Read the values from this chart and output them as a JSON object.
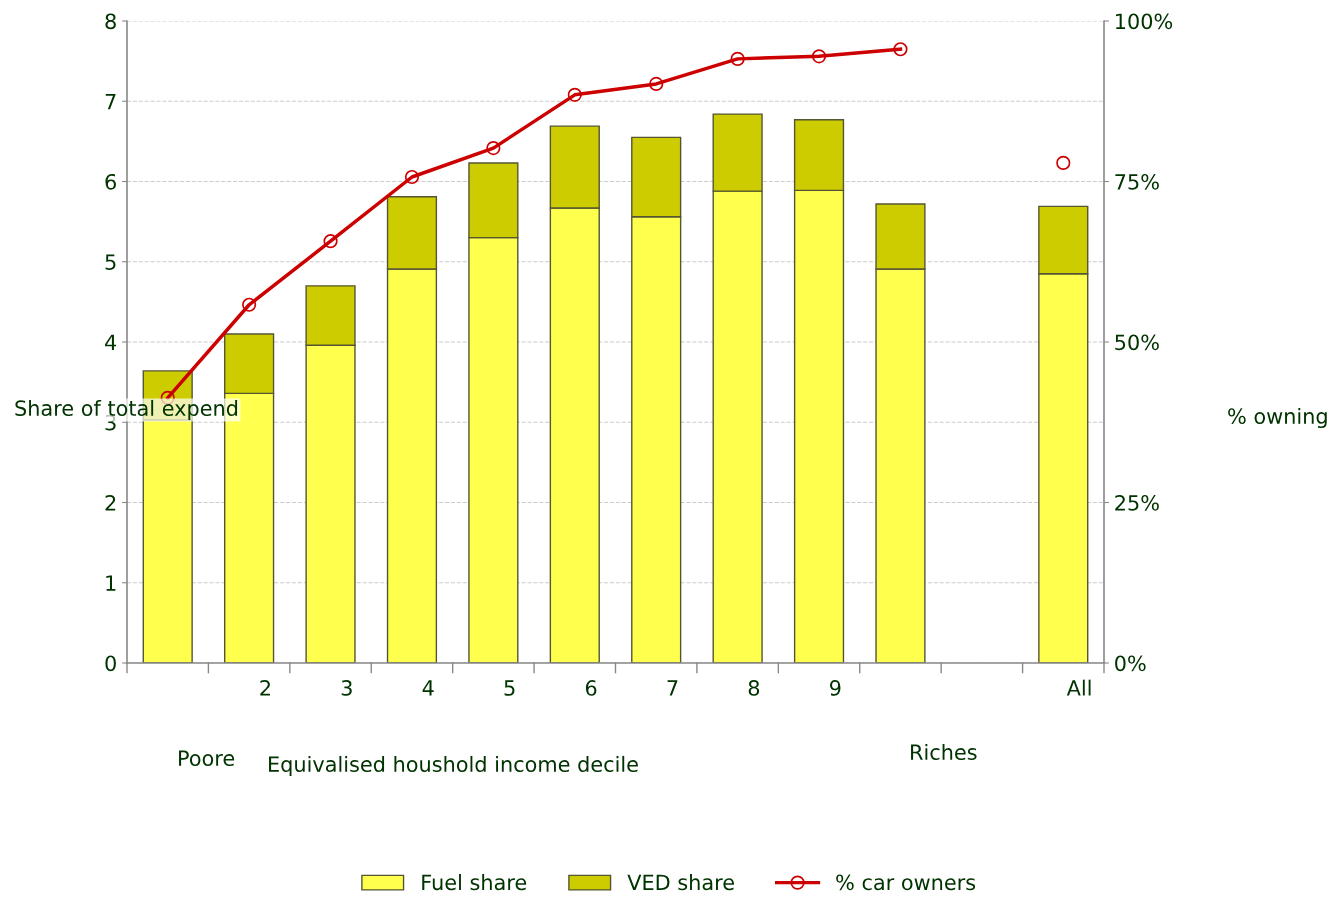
{
  "chart_data": {
    "type": "bar",
    "stacked": true,
    "xlabel": "Equivalised houshold income decile",
    "ylabel": "Share of total expend",
    "y2label": "% owning",
    "categories": [
      null,
      "2",
      "3",
      "4",
      "5",
      "6",
      "7",
      "8",
      "9",
      null,
      null,
      "All"
    ],
    "series": [
      {
        "name": "Fuel share",
        "color": "#ffff4d",
        "values": [
          3.03,
          3.36,
          3.96,
          4.91,
          5.3,
          5.67,
          5.56,
          5.88,
          5.89,
          4.91,
          null,
          4.85
        ]
      },
      {
        "name": "VED share",
        "color": "#cccc00",
        "values": [
          0.61,
          0.74,
          0.74,
          0.9,
          0.93,
          1.02,
          0.99,
          0.96,
          0.88,
          0.81,
          null,
          0.84
        ]
      },
      {
        "name": "% car owners",
        "type": "line",
        "axis": "y2",
        "color": "#cc0000",
        "marker": "circle",
        "line_style": "solid",
        "values": [
          41.3,
          55.8,
          65.7,
          75.7,
          80.2,
          88.5,
          90.2,
          94.1,
          94.5,
          95.6,
          null,
          77.9
        ]
      }
    ],
    "ylim": [
      0,
      8
    ],
    "yticks": [
      0,
      1,
      2,
      3,
      4,
      5,
      6,
      7,
      8
    ],
    "y2lim": [
      0,
      100
    ],
    "y2ticks": [
      {
        "value": 0,
        "label": "0%"
      },
      {
        "value": 25,
        "label": "25%"
      },
      {
        "value": 50,
        "label": "50%"
      },
      {
        "value": 75,
        "label": "75%"
      },
      {
        "value": 100,
        "label": "100%"
      }
    ],
    "grid": "y",
    "legend": "bottom",
    "annotations": [
      "Poore",
      "Riches"
    ]
  }
}
